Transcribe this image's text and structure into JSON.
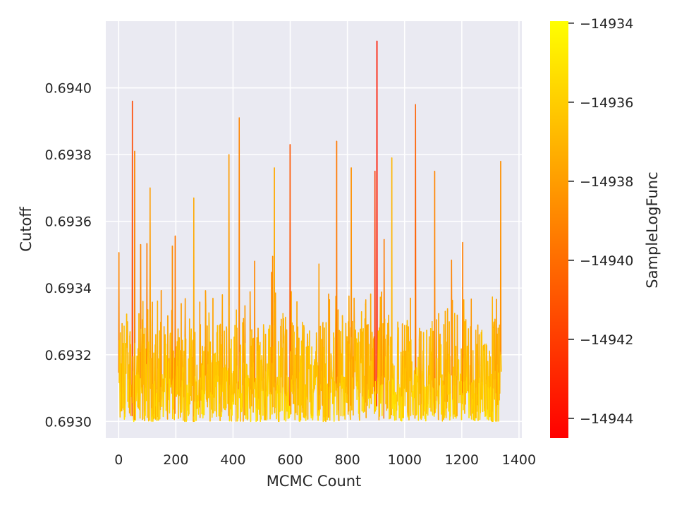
{
  "chart_data": {
    "type": "line",
    "title": "",
    "xlabel": "MCMC Count",
    "ylabel": "Cutoff",
    "xlim": [
      -45,
      1410
    ],
    "ylim": [
      0.69295,
      0.6942
    ],
    "x_ticks": [
      0,
      200,
      400,
      600,
      800,
      1000,
      1200,
      1400
    ],
    "x_tick_labels": [
      "0",
      "200",
      "400",
      "600",
      "800",
      "1000",
      "1200",
      "1400"
    ],
    "y_ticks": [
      0.693,
      0.6932,
      0.6934,
      0.6936,
      0.6938,
      0.694
    ],
    "y_tick_labels": [
      "0.6930",
      "0.6932",
      "0.6934",
      "0.6936",
      "0.6938",
      "0.6940"
    ],
    "grid": true,
    "background_color": "#eaeaf2",
    "n_samples": 1340,
    "line_colormap": "autumn",
    "x_start": 0,
    "x_end": 1338,
    "y_min": 0.693,
    "y_max": 0.69414,
    "y_typical_range": [
      0.693,
      0.69335
    ],
    "spikes": [
      {
        "x": 48,
        "y": 0.69396,
        "color_value": -14941.5
      },
      {
        "x": 56,
        "y": 0.69381,
        "color_value": -14939.0
      },
      {
        "x": 110,
        "y": 0.6937,
        "color_value": -14938.0
      },
      {
        "x": 263,
        "y": 0.69367,
        "color_value": -14937.5
      },
      {
        "x": 386,
        "y": 0.6938,
        "color_value": -14938.0
      },
      {
        "x": 422,
        "y": 0.69391,
        "color_value": -14939.0
      },
      {
        "x": 545,
        "y": 0.69376,
        "color_value": -14937.5
      },
      {
        "x": 600,
        "y": 0.69383,
        "color_value": -14941.0
      },
      {
        "x": 762,
        "y": 0.69384,
        "color_value": -14939.5
      },
      {
        "x": 813,
        "y": 0.69376,
        "color_value": -14938.5
      },
      {
        "x": 896,
        "y": 0.69375,
        "color_value": -14942.0
      },
      {
        "x": 903,
        "y": 0.69414,
        "color_value": -14943.5
      },
      {
        "x": 955,
        "y": 0.69379,
        "color_value": -14937.0
      },
      {
        "x": 1038,
        "y": 0.69395,
        "color_value": -14940.5
      },
      {
        "x": 1105,
        "y": 0.69375,
        "color_value": -14939.0
      },
      {
        "x": 1336,
        "y": 0.69378,
        "color_value": -14938.5
      }
    ],
    "colorbar": {
      "label": "SampleLogFunc",
      "colormap": "autumn",
      "range": [
        -14944.5,
        -14933.95
      ],
      "color_low": "#ff0000",
      "color_high": "#ffff00",
      "ticks": [
        -14934,
        -14936,
        -14938,
        -14940,
        -14942,
        -14944
      ],
      "tick_labels": [
        "−14934",
        "−14936",
        "−14938",
        "−14940",
        "−14942",
        "−14944"
      ]
    }
  }
}
